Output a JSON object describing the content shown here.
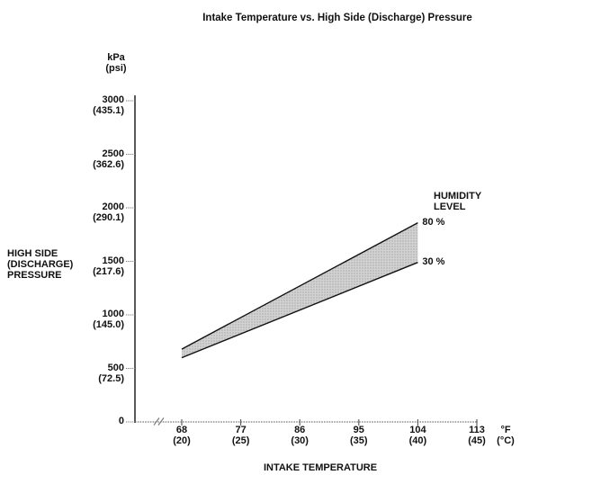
{
  "page": {
    "background": "#ffffff"
  },
  "chart_data": {
    "type": "area",
    "title": "Intake Temperature vs. High Side (Discharge) Pressure",
    "x_axis": {
      "label": "INTAKE TEMPERATURE",
      "unit_primary": "°F",
      "unit_secondary": "(°C)",
      "ticks": [
        {
          "f": "68",
          "c": "(20)"
        },
        {
          "f": "77",
          "c": "(25)"
        },
        {
          "f": "86",
          "c": "(30)"
        },
        {
          "f": "95",
          "c": "(35)"
        },
        {
          "f": "104",
          "c": "(40)"
        },
        {
          "f": "113",
          "c": "(45)"
        }
      ],
      "range_f": [
        68,
        113
      ],
      "axis_break_near_origin": true
    },
    "y_axis": {
      "label_lines": [
        "HIGH SIDE",
        "(DISCHARGE)",
        "PRESSURE"
      ],
      "unit_primary": "kPa",
      "unit_secondary": "(psi)",
      "ticks": [
        {
          "kpa": "3000",
          "psi": "(435.1)"
        },
        {
          "kpa": "2500",
          "psi": "(362.6)"
        },
        {
          "kpa": "2000",
          "psi": "(290.1)"
        },
        {
          "kpa": "1500",
          "psi": "(217.6)"
        },
        {
          "kpa": "1000",
          "psi": "(145.0)"
        },
        {
          "kpa": "500",
          "psi": "(72.5)"
        },
        {
          "kpa": "0",
          "psi": ""
        }
      ],
      "range_kpa": [
        0,
        3000
      ]
    },
    "legend": {
      "title_lines": [
        "HUMIDITY",
        "LEVEL"
      ],
      "position": "right-of-band-end"
    },
    "series": [
      {
        "name": "80 %",
        "humidity_percent": 80,
        "x_f": [
          68,
          104
        ],
        "y_kpa": [
          680,
          1860
        ]
      },
      {
        "name": "30 %",
        "humidity_percent": 30,
        "x_f": [
          68,
          104
        ],
        "y_kpa": [
          600,
          1490
        ]
      }
    ],
    "band": {
      "between": [
        "80 %",
        "30 %"
      ],
      "fill": "#d2d2d2",
      "dot_color": "#a4a4a4"
    },
    "colors": {
      "line": "#111111",
      "axis_y": "#222222",
      "axis_x": "#555555",
      "tick": "#777777",
      "text": "#111111",
      "background": "#ffffff"
    },
    "grid": false
  }
}
